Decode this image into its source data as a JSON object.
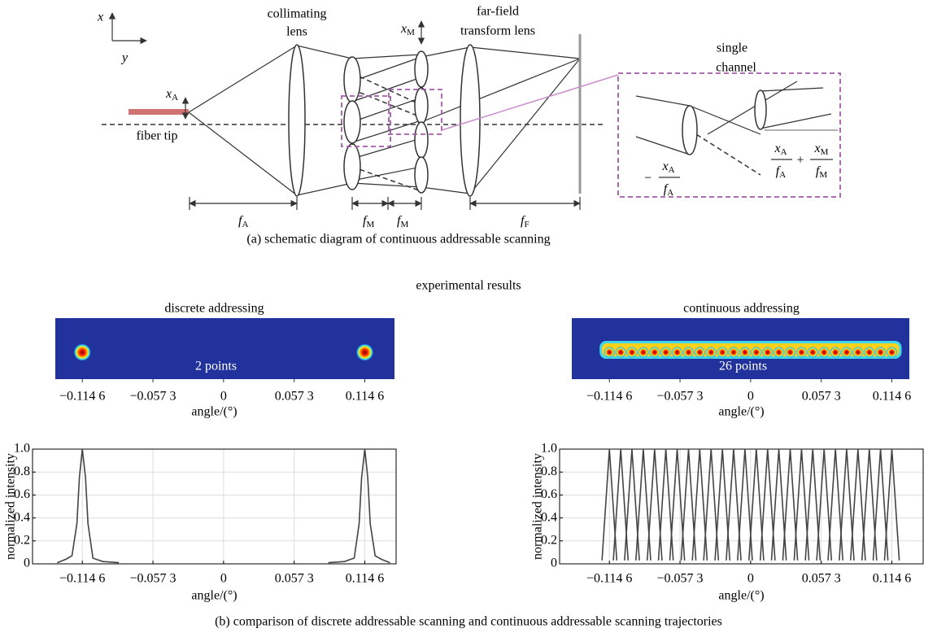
{
  "figure": {
    "caption_a": "(a) schematic diagram of continuous addressable scanning",
    "section_title": "experimental results",
    "caption_b": "(b) comparison of discrete addressable scanning and continuous addressable scanning trajectories"
  },
  "schematic": {
    "axis_x": "x",
    "axis_y": "y",
    "fiber_tip": "fiber tip",
    "x_A": {
      "base": "x",
      "sub": "A"
    },
    "collimating_lens": [
      "collimating",
      "lens"
    ],
    "far_field_lens": [
      "far-field",
      "transform lens"
    ],
    "x_M": {
      "base": "x",
      "sub": "M"
    },
    "single_channel": [
      "single",
      "channel"
    ],
    "f_A": {
      "base": "f",
      "sub": "A"
    },
    "f_M_1": {
      "base": "f",
      "sub": "M"
    },
    "f_M_2": {
      "base": "f",
      "sub": "M"
    },
    "f_F": {
      "base": "f",
      "sub": "F"
    },
    "formula_left": {
      "sign": "−",
      "num": {
        "base": "x",
        "sub": "A"
      },
      "den": {
        "base": "f",
        "sub": "A"
      }
    },
    "formula_right": {
      "operator": "+",
      "terms": [
        {
          "num": {
            "base": "x",
            "sub": "A"
          },
          "den": {
            "base": "f",
            "sub": "A"
          }
        },
        {
          "num": {
            "base": "x",
            "sub": "M"
          },
          "den": {
            "base": "f",
            "sub": "M"
          }
        }
      ]
    }
  },
  "chart_data": [
    {
      "type": "line",
      "title": "discrete addressing",
      "image_label": "2 points",
      "xlabel": "angle/(°)",
      "ylabel": "normalized intensity",
      "xlim": [
        -0.155,
        0.14
      ],
      "ylim": [
        0,
        1
      ],
      "xticks": [
        {
          "value": -0.1146,
          "label": "−0.114 6"
        },
        {
          "value": -0.0573,
          "label": "−0.057 3"
        },
        0,
        {
          "value": 0.0573,
          "label": "0.057 3"
        },
        {
          "value": 0.1146,
          "label": "0.114 6"
        }
      ],
      "yticks": [
        0,
        0.2,
        0.4,
        0.6,
        0.8,
        {
          "value": 1,
          "label": "1.0"
        }
      ],
      "grid": true,
      "color": "#444444",
      "series": [
        {
          "x": [
            -0.135,
            -0.128,
            -0.123,
            -0.119,
            -0.117,
            -0.1146,
            -0.112,
            -0.11,
            -0.106,
            -0.098,
            -0.085
          ],
          "values": [
            0.01,
            0.04,
            0.07,
            0.35,
            0.75,
            1.0,
            0.75,
            0.35,
            0.05,
            0.02,
            0.01
          ]
        },
        {
          "x": [
            0.085,
            0.098,
            0.106,
            0.11,
            0.112,
            0.1146,
            0.117,
            0.119,
            0.123,
            0.128,
            0.135
          ],
          "values": [
            0.01,
            0.02,
            0.05,
            0.35,
            0.75,
            1.0,
            0.75,
            0.35,
            0.07,
            0.04,
            0.01
          ]
        }
      ]
    },
    {
      "type": "line",
      "title": "continuous addressing",
      "image_label": "26 points",
      "xlabel": "angle/(°)",
      "ylabel": "normalized intensity",
      "xlim": [
        -0.155,
        0.14
      ],
      "ylim": [
        0,
        1
      ],
      "xticks": [
        {
          "value": -0.1146,
          "label": "−0.114 6"
        },
        {
          "value": -0.0573,
          "label": "−0.057 3"
        },
        0,
        {
          "value": 0.0573,
          "label": "0.057 3"
        },
        {
          "value": 0.1146,
          "label": "0.114 6"
        }
      ],
      "yticks": [
        0,
        0.2,
        0.4,
        0.6,
        0.8,
        {
          "value": 1,
          "label": "1.0"
        }
      ],
      "grid": true,
      "color": "#444444",
      "series": [
        {
          "x": [
            -0.1206,
            -0.1146,
            -0.1086
          ],
          "values": [
            0.03,
            1,
            0.03
          ]
        },
        {
          "x": [
            -0.1114,
            -0.1054,
            -0.0994
          ],
          "values": [
            0.03,
            1,
            0.03
          ]
        },
        {
          "x": [
            -0.1023,
            -0.0963,
            -0.0903
          ],
          "values": [
            0.03,
            1,
            0.03
          ]
        },
        {
          "x": [
            -0.0931,
            -0.0871,
            -0.0811
          ],
          "values": [
            0.03,
            1,
            0.03
          ]
        },
        {
          "x": [
            -0.0839,
            -0.0779,
            -0.0719
          ],
          "values": [
            0.03,
            1,
            0.03
          ]
        },
        {
          "x": [
            -0.0748,
            -0.0688,
            -0.0628
          ],
          "values": [
            0.03,
            1,
            0.03
          ]
        },
        {
          "x": [
            -0.0656,
            -0.0596,
            -0.0536
          ],
          "values": [
            0.03,
            1,
            0.03
          ]
        },
        {
          "x": [
            -0.0564,
            -0.0504,
            -0.0444
          ],
          "values": [
            0.03,
            1,
            0.03
          ]
        },
        {
          "x": [
            -0.0473,
            -0.0413,
            -0.0353
          ],
          "values": [
            0.03,
            1,
            0.03
          ]
        },
        {
          "x": [
            -0.0381,
            -0.0321,
            -0.0261
          ],
          "values": [
            0.03,
            1,
            0.03
          ]
        },
        {
          "x": [
            -0.0289,
            -0.0229,
            -0.0169
          ],
          "values": [
            0.03,
            1,
            0.03
          ]
        },
        {
          "x": [
            -0.0198,
            -0.0138,
            -0.0078
          ],
          "values": [
            0.03,
            1,
            0.03
          ]
        },
        {
          "x": [
            -0.0106,
            -0.0046,
            0.0014
          ],
          "values": [
            0.03,
            1,
            0.03
          ]
        },
        {
          "x": [
            -0.0014,
            0.0046,
            0.0106
          ],
          "values": [
            0.03,
            1,
            0.03
          ]
        },
        {
          "x": [
            0.0078,
            0.0138,
            0.0198
          ],
          "values": [
            0.03,
            1,
            0.03
          ]
        },
        {
          "x": [
            0.0169,
            0.0229,
            0.0289
          ],
          "values": [
            0.03,
            1,
            0.03
          ]
        },
        {
          "x": [
            0.0261,
            0.0321,
            0.0381
          ],
          "values": [
            0.03,
            1,
            0.03
          ]
        },
        {
          "x": [
            0.0353,
            0.0413,
            0.0473
          ],
          "values": [
            0.03,
            1,
            0.03
          ]
        },
        {
          "x": [
            0.0444,
            0.0504,
            0.0564
          ],
          "values": [
            0.03,
            1,
            0.03
          ]
        },
        {
          "x": [
            0.0536,
            0.0596,
            0.0656
          ],
          "values": [
            0.03,
            1,
            0.03
          ]
        },
        {
          "x": [
            0.0628,
            0.0688,
            0.0748
          ],
          "values": [
            0.03,
            1,
            0.03
          ]
        },
        {
          "x": [
            0.0719,
            0.0779,
            0.0839
          ],
          "values": [
            0.03,
            1,
            0.03
          ]
        },
        {
          "x": [
            0.0811,
            0.0871,
            0.0931
          ],
          "values": [
            0.03,
            1,
            0.03
          ]
        },
        {
          "x": [
            0.0903,
            0.0963,
            0.1023
          ],
          "values": [
            0.03,
            1,
            0.03
          ]
        },
        {
          "x": [
            0.0994,
            0.1054,
            0.1114
          ],
          "values": [
            0.03,
            1,
            0.03
          ]
        },
        {
          "x": [
            0.1086,
            0.1146,
            0.1206
          ],
          "values": [
            0.03,
            1,
            0.03
          ]
        }
      ]
    }
  ]
}
